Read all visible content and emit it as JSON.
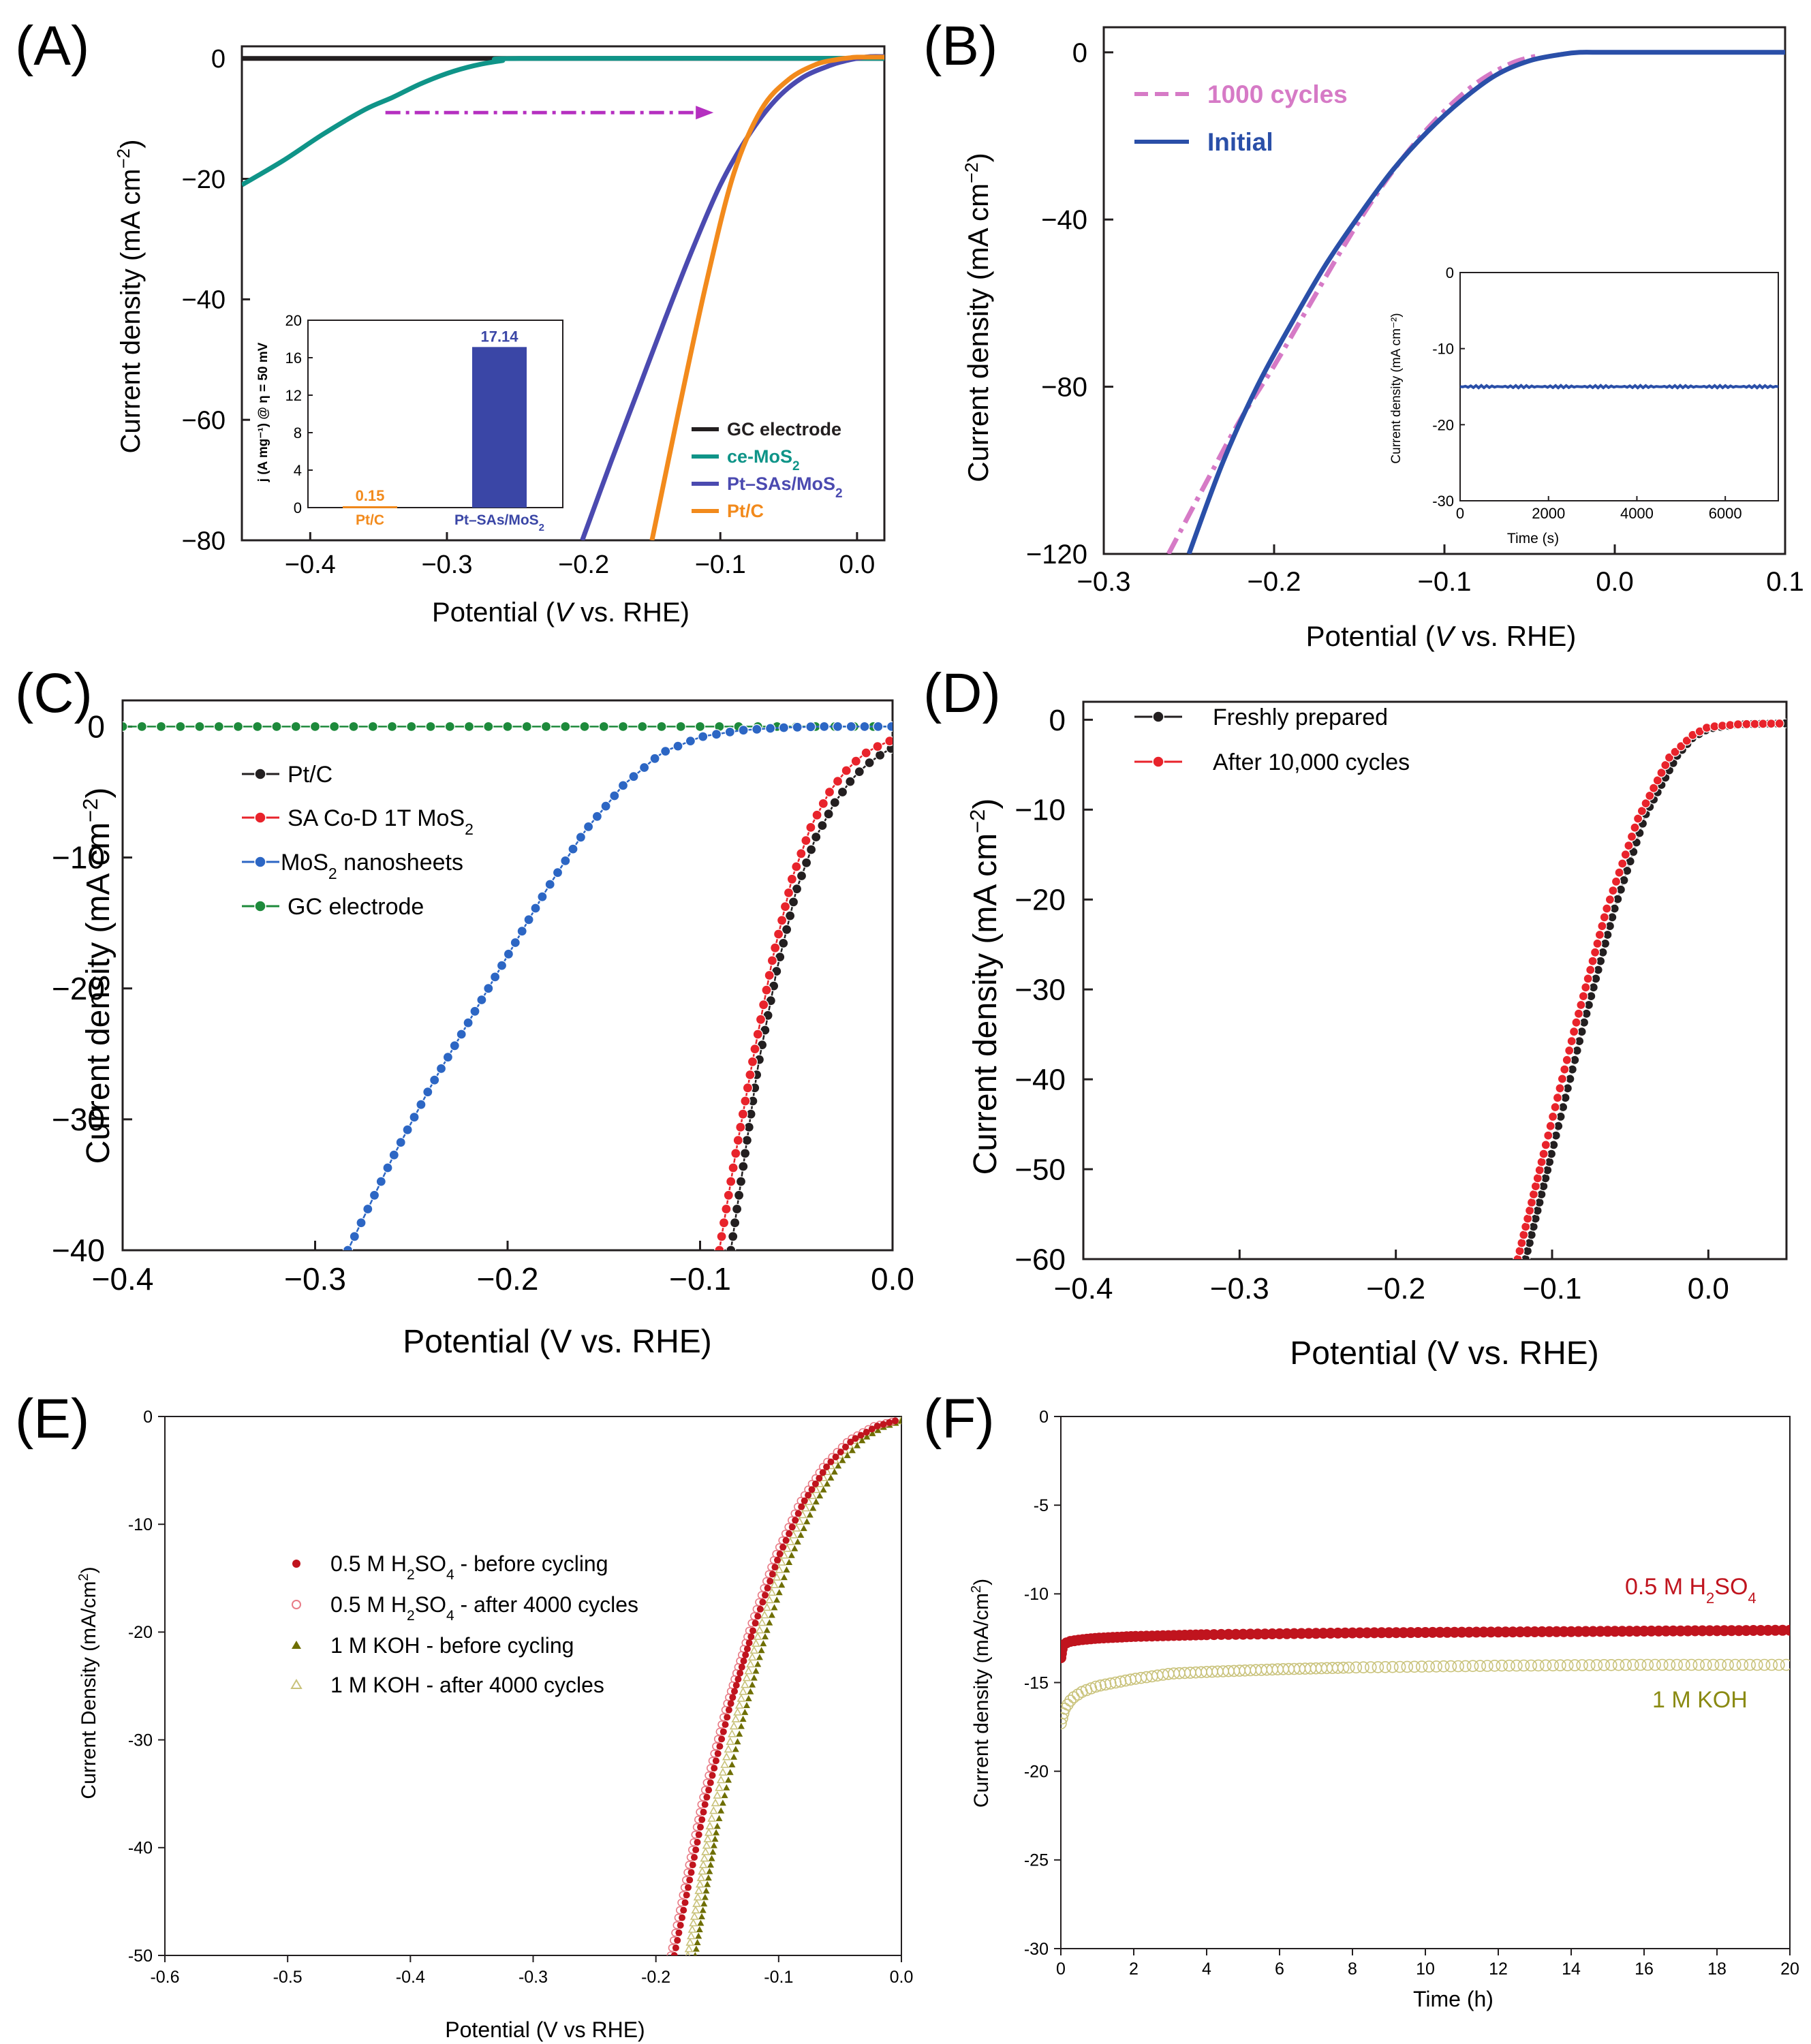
{
  "figure": {
    "colors": {
      "black": "#231f20",
      "teal": "#0f9488",
      "purple": "#4b4ab0",
      "orange": "#f28a1c",
      "pink": "#d67ac6",
      "blue_initial": "#2a4fa8",
      "red": "#e8232b",
      "green": "#1d8a3b",
      "blue_c": "#2c66c4",
      "darkred": "#c0141e",
      "pinkred": "#e87b86",
      "olive": "#6e6e00",
      "olive_light": "#c9c27a",
      "bar": "#3a46a6",
      "arrow": "#b530c0"
    }
  },
  "chart_data": [
    {
      "panel": "(A)",
      "type": "line",
      "xlabel_pre": "Potential (",
      "xlabel_it": "V",
      "xlabel_post": " vs. RHE)",
      "ylabel": "Current density (mA cm",
      "ylabel_sup": "−2",
      "ylabel_close": ")",
      "xlim": [
        -0.45,
        0.02
      ],
      "ylim": [
        -80,
        2
      ],
      "xticks": [
        -0.4,
        -0.3,
        -0.2,
        -0.1,
        0.0
      ],
      "xtick_labels": [
        "−0.4",
        "−0.3",
        "−0.2",
        "−0.1",
        "0.0"
      ],
      "yticks": [
        0,
        -20,
        -40,
        -60,
        -80
      ],
      "ytick_labels": [
        "0",
        "−20",
        "−40",
        "−60",
        "−80"
      ],
      "legend": [
        "GC electrode",
        "ce-MoS",
        "Pt–SAs/MoS",
        "Pt/C"
      ],
      "legend_sub": [
        "",
        "2",
        "2",
        ""
      ],
      "series": [
        {
          "name": "GC electrode",
          "color_key": "black",
          "x": [
            -0.45,
            0.02
          ],
          "y": [
            0,
            0
          ]
        },
        {
          "name": "ce-MoS2",
          "color_key": "teal",
          "x": [
            -0.45,
            -0.42,
            -0.39,
            -0.36,
            -0.34,
            -0.32,
            -0.3,
            -0.28,
            -0.26,
            -0.24,
            0.02
          ],
          "y": [
            -21,
            -17,
            -12.5,
            -8.5,
            -6.5,
            -4.3,
            -2.5,
            -1.2,
            -0.4,
            0,
            0
          ]
        },
        {
          "name": "Pt-SAs/MoS2",
          "color_key": "purple",
          "x": [
            -0.201,
            -0.18,
            -0.16,
            -0.14,
            -0.12,
            -0.1,
            -0.08,
            -0.06,
            -0.04,
            -0.02,
            -0.01,
            0.0,
            0.01,
            0.02
          ],
          "y": [
            -80,
            -67,
            -55,
            -43,
            -31.5,
            -21,
            -13,
            -7,
            -3.2,
            -1.2,
            -0.5,
            0,
            0.3,
            0.3
          ]
        },
        {
          "name": "Pt/C",
          "color_key": "orange",
          "x": [
            -0.15,
            -0.13,
            -0.11,
            -0.09,
            -0.07,
            -0.05,
            -0.03,
            -0.015,
            -0.005,
            0.0,
            0.02
          ],
          "y": [
            -80,
            -58,
            -37,
            -19,
            -8.5,
            -3.5,
            -1,
            -0.2,
            0.1,
            0.2,
            0.2
          ]
        }
      ],
      "arrow": {
        "x_from": -0.345,
        "x_to": -0.105,
        "y": -9
      },
      "inset": {
        "type": "bar",
        "ylabel": "j (A mg⁻¹) @ η = 50 mV",
        "ylim": [
          0,
          20
        ],
        "yticks": [
          0,
          4,
          8,
          12,
          16,
          20
        ],
        "categories": [
          "Pt/C",
          "Pt–SAs/MoS"
        ],
        "category_sub": [
          "",
          "2"
        ],
        "values": [
          0.15,
          17.14
        ],
        "value_labels": [
          "0.15",
          "17.14"
        ]
      }
    },
    {
      "panel": "(B)",
      "type": "line",
      "xlabel_pre": "Potential (",
      "xlabel_it": "V",
      "xlabel_post": " vs. RHE)",
      "ylabel": "Current density (mA cm",
      "ylabel_sup": "−2",
      "ylabel_close": ")",
      "xlim": [
        -0.3,
        0.1
      ],
      "ylim": [
        -120,
        6
      ],
      "xticks": [
        -0.3,
        -0.2,
        -0.1,
        0.0,
        0.1
      ],
      "xtick_labels": [
        "−0.3",
        "−0.2",
        "−0.1",
        "0.0",
        "0.1"
      ],
      "yticks": [
        0,
        -40,
        -80,
        -120
      ],
      "ytick_labels": [
        "0",
        "−40",
        "−80",
        "−120"
      ],
      "legend": [
        "1000 cycles",
        "Initial"
      ],
      "series": [
        {
          "name": "1000 cycles",
          "color_key": "pink",
          "x": [
            -0.262,
            -0.24,
            -0.22,
            -0.2,
            -0.18,
            -0.16,
            -0.14,
            -0.12,
            -0.1,
            -0.08,
            -0.06,
            -0.045
          ],
          "y": [
            -120,
            -103,
            -88,
            -75,
            -61,
            -47,
            -34,
            -23,
            -14,
            -7,
            -2.5,
            -0.8
          ]
        },
        {
          "name": "Initial",
          "color_key": "blue_initial",
          "x": [
            -0.25,
            -0.23,
            -0.21,
            -0.19,
            -0.17,
            -0.15,
            -0.13,
            -0.11,
            -0.09,
            -0.07,
            -0.05,
            -0.03,
            -0.02,
            -0.01,
            0.0,
            0.1
          ],
          "y": [
            -120,
            -98,
            -80,
            -65,
            -51,
            -39,
            -28,
            -19,
            -11.5,
            -5.5,
            -2,
            -0.4,
            0,
            0,
            0,
            0
          ]
        }
      ],
      "inset": {
        "type": "line",
        "xlabel": "Time (s)",
        "ylabel": "Current density (mA cm⁻²)",
        "xlim": [
          0,
          7200
        ],
        "ylim": [
          -30,
          0
        ],
        "xticks": [
          0,
          2000,
          4000,
          6000
        ],
        "yticks": [
          0,
          -10,
          -20,
          -30
        ],
        "ytick_labels": [
          "0",
          "-10",
          "-20",
          "-30"
        ],
        "value": -15
      }
    },
    {
      "panel": "(C)",
      "type": "line",
      "xlabel": "Potential (V vs. RHE)",
      "ylabel": "Current density (mA cm",
      "ylabel_sup": "−2",
      "ylabel_close": ")",
      "xlim": [
        -0.4,
        0.0
      ],
      "ylim": [
        -40,
        2
      ],
      "xticks": [
        -0.4,
        -0.3,
        -0.2,
        -0.1,
        0.0
      ],
      "xtick_labels": [
        "−0.4",
        "−0.3",
        "−0.2",
        "−0.1",
        "0.0"
      ],
      "yticks": [
        0,
        -10,
        -20,
        -30,
        -40
      ],
      "ytick_labels": [
        "0",
        "−10",
        "−20",
        "−30",
        "−40"
      ],
      "legend": [
        "Pt/C",
        "SA Co-D 1T MoS",
        "MoS",
        "GC electrode"
      ],
      "legend_sub": [
        "",
        "2",
        "2",
        ""
      ],
      "legend_post": [
        "",
        "",
        " nanosheets",
        ""
      ],
      "series": [
        {
          "name": "Pt/C",
          "color_key": "black",
          "x": [
            -0.084,
            -0.078,
            -0.07,
            -0.06,
            -0.05,
            -0.04,
            -0.03,
            -0.02,
            -0.01,
            0.0
          ],
          "y": [
            -40,
            -34,
            -26,
            -18.5,
            -12.5,
            -8.5,
            -5.8,
            -3.8,
            -2.5,
            -1.6
          ]
        },
        {
          "name": "SA Co-D 1T MoS2",
          "color_key": "red",
          "x": [
            -0.09,
            -0.082,
            -0.072,
            -0.062,
            -0.052,
            -0.042,
            -0.032,
            -0.022,
            -0.012,
            0.0
          ],
          "y": [
            -40,
            -33,
            -25,
            -17.5,
            -11.5,
            -7.5,
            -4.8,
            -3,
            -1.8,
            -1.0
          ]
        },
        {
          "name": "MoS2 nanosheets",
          "color_key": "blue_c",
          "x": [
            -0.283,
            -0.26,
            -0.24,
            -0.22,
            -0.2,
            -0.18,
            -0.16,
            -0.14,
            -0.12,
            -0.1,
            -0.08,
            -0.06,
            -0.04,
            -0.02,
            0.0
          ],
          "y": [
            -40,
            -33,
            -27.5,
            -22.5,
            -17.5,
            -12.5,
            -8,
            -4.5,
            -2,
            -0.8,
            -0.3,
            -0.1,
            0,
            0,
            0
          ]
        },
        {
          "name": "GC electrode",
          "color_key": "green",
          "x": [
            -0.4,
            0.0
          ],
          "y": [
            0,
            0
          ]
        }
      ]
    },
    {
      "panel": "(D)",
      "type": "line",
      "xlabel": "Potential (V vs. RHE)",
      "ylabel": "Current density (mA cm",
      "ylabel_sup": "−2",
      "ylabel_close": ")",
      "xlim": [
        -0.4,
        0.05
      ],
      "ylim": [
        -60,
        2
      ],
      "xticks": [
        -0.4,
        -0.3,
        -0.2,
        -0.1,
        0.0
      ],
      "xtick_labels": [
        "−0.4",
        "−0.3",
        "−0.2",
        "−0.1",
        "0.0"
      ],
      "yticks": [
        0,
        -10,
        -20,
        -30,
        -40,
        -50,
        -60
      ],
      "ytick_labels": [
        "0",
        "−10",
        "−20",
        "−30",
        "−40",
        "−50",
        "−60"
      ],
      "legend": [
        "Freshly prepared",
        "After 10,000 cycles"
      ],
      "series": [
        {
          "name": "Freshly prepared",
          "color_key": "black",
          "x": [
            -0.117,
            -0.1,
            -0.08,
            -0.06,
            -0.04,
            -0.02,
            -0.01,
            0.0,
            0.02,
            0.05
          ],
          "y": [
            -60,
            -48,
            -34,
            -21,
            -10.5,
            -4,
            -2,
            -1,
            -0.5,
            -0.4
          ]
        },
        {
          "name": "After 10,000 cycles",
          "color_key": "red",
          "x": [
            -0.122,
            -0.105,
            -0.085,
            -0.065,
            -0.045,
            -0.025,
            -0.01,
            0.0,
            0.02,
            0.05
          ],
          "y": [
            -60,
            -48,
            -34,
            -21,
            -11,
            -4.2,
            -1.7,
            -0.8,
            -0.5,
            -0.4
          ]
        }
      ]
    },
    {
      "panel": "(E)",
      "type": "scatter",
      "xlabel": "Potential (V vs RHE)",
      "ylabel": "Current Density (mA/cm",
      "ylabel_sup": "2",
      "ylabel_close": ")",
      "xlim": [
        -0.6,
        0.0
      ],
      "ylim": [
        -50,
        0
      ],
      "xticks": [
        -0.6,
        -0.5,
        -0.4,
        -0.3,
        -0.2,
        -0.1,
        0.0
      ],
      "xtick_labels": [
        "-0.6",
        "-0.5",
        "-0.4",
        "-0.3",
        "-0.2",
        "-0.1",
        "0.0"
      ],
      "yticks": [
        0,
        -10,
        -20,
        -30,
        -40,
        -50
      ],
      "ytick_labels": [
        "0",
        "-10",
        "-20",
        "-30",
        "-40",
        "-50"
      ],
      "legend": [
        "0.5 M H",
        "0.5 M H",
        "1 M KOH - before cycling",
        "1 M KOH - after 4000 cycles"
      ],
      "legend_sub1": [
        "2",
        "2",
        "",
        ""
      ],
      "legend_mid": [
        "SO",
        "SO",
        "",
        ""
      ],
      "legend_sub2": [
        "4",
        "4",
        "",
        ""
      ],
      "legend_post": [
        " - before cycling",
        " - after 4000 cycles",
        "",
        ""
      ],
      "series": [
        {
          "name": "0.5 M H2SO4 - before cycling",
          "color_key": "darkred",
          "x": [
            -0.185,
            -0.16,
            -0.14,
            -0.12,
            -0.1,
            -0.08,
            -0.06,
            -0.04,
            -0.02,
            -0.005
          ],
          "y": [
            -50,
            -36,
            -27,
            -19.5,
            -13,
            -8,
            -4.5,
            -2.2,
            -0.9,
            -0.4
          ]
        },
        {
          "name": "0.5 M H2SO4 - after 4000 cycles",
          "color_key": "pinkred",
          "x": [
            -0.188,
            -0.163,
            -0.143,
            -0.123,
            -0.103,
            -0.083,
            -0.063,
            -0.043,
            -0.023,
            -0.005
          ],
          "y": [
            -50,
            -36,
            -27,
            -19.5,
            -13,
            -8,
            -4.5,
            -2.2,
            -0.9,
            -0.4
          ]
        },
        {
          "name": "1 M KOH - before cycling",
          "color_key": "olive",
          "x": [
            -0.168,
            -0.15,
            -0.13,
            -0.11,
            -0.09,
            -0.07,
            -0.05,
            -0.03,
            -0.015,
            0.0
          ],
          "y": [
            -50,
            -38,
            -28.5,
            -20,
            -13,
            -8,
            -4.3,
            -2,
            -1,
            -0.4
          ]
        },
        {
          "name": "1 M KOH - after 4000 cycles",
          "color_key": "olive_light",
          "x": [
            -0.174,
            -0.156,
            -0.136,
            -0.116,
            -0.096,
            -0.076,
            -0.056,
            -0.036,
            -0.018,
            0.0
          ],
          "y": [
            -50,
            -38,
            -28.5,
            -20,
            -13,
            -8,
            -4.3,
            -2,
            -1,
            -0.4
          ]
        }
      ]
    },
    {
      "panel": "(F)",
      "type": "scatter",
      "xlabel": "Time (h)",
      "ylabel": "Current density (mA/cm",
      "ylabel_sup": "2",
      "ylabel_close": ")",
      "xlim": [
        0,
        20
      ],
      "ylim": [
        -30,
        0
      ],
      "xticks": [
        0,
        2,
        4,
        6,
        8,
        10,
        12,
        14,
        16,
        18,
        20
      ],
      "yticks": [
        0,
        -5,
        -10,
        -15,
        -20,
        -25,
        -30
      ],
      "ytick_labels": [
        "0",
        "-5",
        "-10",
        "-15",
        "-20",
        "-25",
        "-30"
      ],
      "labels": [
        {
          "pre": "0.5 M H",
          "sub1": "2",
          "mid": "SO",
          "sub2": "4"
        },
        {
          "pre": "1 M KOH"
        }
      ],
      "series": [
        {
          "name": "0.5 M H2SO4",
          "color_key": "darkred",
          "x": [
            0,
            0.05,
            0.2,
            0.5,
            1,
            2,
            4,
            8,
            12,
            16,
            20
          ],
          "y": [
            -13.6,
            -12.9,
            -12.7,
            -12.6,
            -12.5,
            -12.4,
            -12.3,
            -12.2,
            -12.15,
            -12.1,
            -12.05
          ]
        },
        {
          "name": "1 M KOH",
          "color_key": "olive_light",
          "x": [
            0,
            0.1,
            0.3,
            0.6,
            1,
            1.5,
            2,
            3,
            4,
            6,
            8,
            12,
            16,
            20
          ],
          "y": [
            -17.3,
            -16.5,
            -15.9,
            -15.5,
            -15.2,
            -15.0,
            -14.8,
            -14.5,
            -14.4,
            -14.25,
            -14.15,
            -14.05,
            -14.0,
            -14.0
          ]
        }
      ]
    }
  ]
}
